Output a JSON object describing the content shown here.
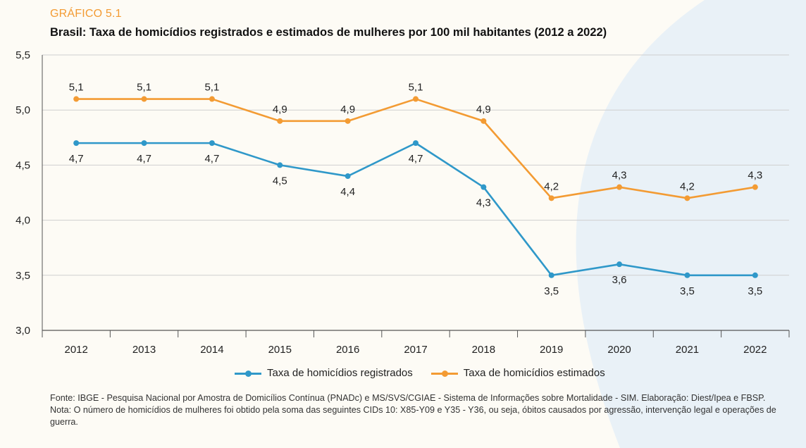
{
  "figure_label": "GRÁFICO 5.1",
  "title": "Brasil: Taxa de homicídios registrados e estimados de mulheres por 100 mil habitantes (2012 a 2022)",
  "colors": {
    "registered": "#2f98c9",
    "estimated": "#f39b33",
    "accent": "#f39b33",
    "background": "#fdfbf5",
    "swoosh": "#e9f1f7"
  },
  "chart_data": {
    "type": "line",
    "categories": [
      "2012",
      "2013",
      "2014",
      "2015",
      "2016",
      "2017",
      "2018",
      "2019",
      "2020",
      "2021",
      "2022"
    ],
    "series": [
      {
        "name": "Taxa de homicídios registrados",
        "values": [
          4.7,
          4.7,
          4.7,
          4.5,
          4.4,
          4.7,
          4.3,
          3.5,
          3.6,
          3.5,
          3.5
        ],
        "labels": [
          "4,7",
          "4,7",
          "4,7",
          "4,5",
          "4,4",
          "4,7",
          "4,3",
          "3,5",
          "3,6",
          "3,5",
          "3,5"
        ]
      },
      {
        "name": "Taxa de homicídios estimados",
        "values": [
          5.1,
          5.1,
          5.1,
          4.9,
          4.9,
          5.1,
          4.9,
          4.2,
          4.3,
          4.2,
          4.3
        ],
        "labels": [
          "5,1",
          "5,1",
          "5,1",
          "4,9",
          "4,9",
          "5,1",
          "4,9",
          "4,2",
          "4,3",
          "4,2",
          "4,3"
        ]
      }
    ],
    "ylim": [
      3.0,
      5.5
    ],
    "yticks": [
      3.0,
      3.5,
      4.0,
      4.5,
      5.0,
      5.5
    ],
    "ytick_labels": [
      "3,0",
      "3,5",
      "4,0",
      "4,5",
      "5,0",
      "5,5"
    ],
    "xlabel": "",
    "ylabel": "",
    "grid": true,
    "legend_position": "bottom"
  },
  "legend": [
    {
      "label": "Taxa de homicídios registrados"
    },
    {
      "label": "Taxa de homicídios estimados"
    }
  ],
  "footnotes": {
    "source": "Fonte: IBGE - Pesquisa Nacional por Amostra de Domicílios Contínua (PNADc) e MS/SVS/CGIAE - Sistema de Informações sobre Mortalidade - SIM. Elaboração: Diest/Ipea e FBSP.",
    "note": "Nota: O número de homicídios de mulheres foi obtido pela soma das seguintes CIDs 10: X85-Y09 e Y35 - Y36, ou seja, óbitos causados por agressão, intervenção legal e operações de guerra."
  }
}
